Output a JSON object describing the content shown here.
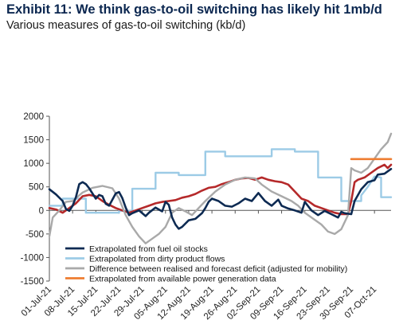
{
  "title": "Exhibit 11: We think gas-to-oil switching has likely hit 1mb/d",
  "subtitle": "Various measures of gas-to-oil switching (kb/d)",
  "chart_data": {
    "type": "line",
    "ylim": [
      -1500,
      2000
    ],
    "yticks": [
      2000,
      1500,
      1000,
      500,
      0,
      -500,
      -1000,
      -1500
    ],
    "xlim": [
      "2021-07-01",
      "2021-10-12"
    ],
    "xticks": [
      {
        "date": "2021-07-01",
        "label": "01-Jul-21"
      },
      {
        "date": "2021-07-08",
        "label": "08-Jul-21"
      },
      {
        "date": "2021-07-15",
        "label": "15-Jul-21"
      },
      {
        "date": "2021-07-22",
        "label": "22-Jul-21"
      },
      {
        "date": "2021-07-29",
        "label": "29-Jul-21"
      },
      {
        "date": "2021-08-05",
        "label": "05-Aug-21"
      },
      {
        "date": "2021-08-12",
        "label": "12-Aug-21"
      },
      {
        "date": "2021-08-19",
        "label": "19-Aug-21"
      },
      {
        "date": "2021-08-26",
        "label": "26-Aug-21"
      },
      {
        "date": "2021-09-02",
        "label": "02-Sep-21"
      },
      {
        "date": "2021-09-09",
        "label": "09-Sep-21"
      },
      {
        "date": "2021-09-16",
        "label": "16-Sep-21"
      },
      {
        "date": "2021-09-23",
        "label": "23-Sep-21"
      },
      {
        "date": "2021-09-30",
        "label": "30-Sep-21"
      },
      {
        "date": "2021-10-07",
        "label": "07-Oct-21"
      }
    ],
    "grid": false,
    "legend_position": "bottom-left",
    "series": [
      {
        "name": "Extrapolated from fuel oil stocks",
        "color": "#0d2a52",
        "points": [
          [
            "2021-07-01",
            450
          ],
          [
            "2021-07-03",
            340
          ],
          [
            "2021-07-05",
            200
          ],
          [
            "2021-07-06",
            30
          ],
          [
            "2021-07-07",
            -10
          ],
          [
            "2021-07-08",
            100
          ],
          [
            "2021-07-09",
            280
          ],
          [
            "2021-07-10",
            560
          ],
          [
            "2021-07-11",
            600
          ],
          [
            "2021-07-12",
            560
          ],
          [
            "2021-07-13",
            470
          ],
          [
            "2021-07-14",
            360
          ],
          [
            "2021-07-15",
            250
          ],
          [
            "2021-07-16",
            330
          ],
          [
            "2021-07-17",
            300
          ],
          [
            "2021-07-18",
            140
          ],
          [
            "2021-07-19",
            100
          ],
          [
            "2021-07-21",
            360
          ],
          [
            "2021-07-22",
            390
          ],
          [
            "2021-07-23",
            260
          ],
          [
            "2021-07-24",
            60
          ],
          [
            "2021-07-25",
            -100
          ],
          [
            "2021-07-26",
            -60
          ],
          [
            "2021-07-28",
            0
          ],
          [
            "2021-07-30",
            -120
          ],
          [
            "2021-07-31",
            -50
          ],
          [
            "2021-08-02",
            60
          ],
          [
            "2021-08-04",
            -20
          ],
          [
            "2021-08-05",
            180
          ],
          [
            "2021-08-06",
            120
          ],
          [
            "2021-08-07",
            -150
          ],
          [
            "2021-08-08",
            -300
          ],
          [
            "2021-08-09",
            -390
          ],
          [
            "2021-08-10",
            -350
          ],
          [
            "2021-08-12",
            -210
          ],
          [
            "2021-08-14",
            -180
          ],
          [
            "2021-08-16",
            -60
          ],
          [
            "2021-08-17",
            50
          ],
          [
            "2021-08-18",
            180
          ],
          [
            "2021-08-19",
            250
          ],
          [
            "2021-08-21",
            200
          ],
          [
            "2021-08-23",
            100
          ],
          [
            "2021-08-25",
            80
          ],
          [
            "2021-08-27",
            150
          ],
          [
            "2021-08-29",
            250
          ],
          [
            "2021-08-31",
            200
          ],
          [
            "2021-09-02",
            370
          ],
          [
            "2021-09-04",
            200
          ],
          [
            "2021-09-06",
            100
          ],
          [
            "2021-09-08",
            230
          ],
          [
            "2021-09-09",
            100
          ],
          [
            "2021-09-11",
            40
          ],
          [
            "2021-09-13",
            0
          ],
          [
            "2021-09-15",
            -50
          ],
          [
            "2021-09-16",
            180
          ],
          [
            "2021-09-18",
            0
          ],
          [
            "2021-09-20",
            -100
          ],
          [
            "2021-09-22",
            -10
          ],
          [
            "2021-09-24",
            -80
          ],
          [
            "2021-09-26",
            -150
          ],
          [
            "2021-09-27",
            -30
          ],
          [
            "2021-09-28",
            -60
          ],
          [
            "2021-09-30",
            -80
          ],
          [
            "2021-10-01",
            200
          ],
          [
            "2021-10-03",
            450
          ],
          [
            "2021-10-05",
            600
          ],
          [
            "2021-10-07",
            640
          ],
          [
            "2021-10-08",
            760
          ],
          [
            "2021-10-10",
            780
          ],
          [
            "2021-10-12",
            880
          ]
        ]
      },
      {
        "name": "Extrapolated from dirty product flows",
        "color": "#9ccbe6",
        "points": [
          [
            "2021-07-01",
            100
          ],
          [
            "2021-07-05",
            100
          ],
          [
            "2021-07-05",
            250
          ],
          [
            "2021-07-12",
            250
          ],
          [
            "2021-07-12",
            -50
          ],
          [
            "2021-07-22",
            -50
          ],
          [
            "2021-07-22",
            -10
          ],
          [
            "2021-07-26",
            -10
          ],
          [
            "2021-07-26",
            460
          ],
          [
            "2021-08-02",
            460
          ],
          [
            "2021-08-02",
            800
          ],
          [
            "2021-08-09",
            800
          ],
          [
            "2021-08-09",
            750
          ],
          [
            "2021-08-17",
            750
          ],
          [
            "2021-08-17",
            1250
          ],
          [
            "2021-08-23",
            1250
          ],
          [
            "2021-08-23",
            1150
          ],
          [
            "2021-09-06",
            1150
          ],
          [
            "2021-09-06",
            1300
          ],
          [
            "2021-09-13",
            1300
          ],
          [
            "2021-09-13",
            1250
          ],
          [
            "2021-09-20",
            1250
          ],
          [
            "2021-09-20",
            700
          ],
          [
            "2021-09-27",
            700
          ],
          [
            "2021-09-27",
            200
          ],
          [
            "2021-10-03",
            200
          ],
          [
            "2021-10-03",
            320
          ],
          [
            "2021-10-05",
            500
          ],
          [
            "2021-10-07",
            720
          ],
          [
            "2021-10-09",
            700
          ],
          [
            "2021-10-09",
            280
          ],
          [
            "2021-10-12",
            280
          ]
        ]
      },
      {
        "name": "Difference between realised and forecast deficit (adjusted for mobility)",
        "color": "#a9a9a9",
        "points": [
          [
            "2021-07-01",
            -550
          ],
          [
            "2021-07-02",
            -150
          ],
          [
            "2021-07-04",
            0
          ],
          [
            "2021-07-06",
            180
          ],
          [
            "2021-07-08",
            200
          ],
          [
            "2021-07-11",
            380
          ],
          [
            "2021-07-14",
            480
          ],
          [
            "2021-07-17",
            520
          ],
          [
            "2021-07-20",
            470
          ],
          [
            "2021-07-22",
            250
          ],
          [
            "2021-07-24",
            -100
          ],
          [
            "2021-07-26",
            -350
          ],
          [
            "2021-07-28",
            -550
          ],
          [
            "2021-07-30",
            -700
          ],
          [
            "2021-08-01",
            -600
          ],
          [
            "2021-08-03",
            -500
          ],
          [
            "2021-08-05",
            -350
          ],
          [
            "2021-08-07",
            -50
          ],
          [
            "2021-08-09",
            50
          ],
          [
            "2021-08-11",
            -20
          ],
          [
            "2021-08-13",
            -100
          ],
          [
            "2021-08-15",
            50
          ],
          [
            "2021-08-17",
            200
          ],
          [
            "2021-08-20",
            400
          ],
          [
            "2021-08-23",
            550
          ],
          [
            "2021-08-26",
            650
          ],
          [
            "2021-08-29",
            700
          ],
          [
            "2021-09-01",
            680
          ],
          [
            "2021-09-03",
            550
          ],
          [
            "2021-09-06",
            400
          ],
          [
            "2021-09-09",
            300
          ],
          [
            "2021-09-12",
            200
          ],
          [
            "2021-09-14",
            100
          ],
          [
            "2021-09-16",
            -50
          ],
          [
            "2021-09-19",
            -200
          ],
          [
            "2021-09-21",
            -300
          ],
          [
            "2021-09-23",
            -450
          ],
          [
            "2021-09-25",
            -500
          ],
          [
            "2021-09-27",
            -400
          ],
          [
            "2021-09-29",
            -100
          ],
          [
            "2021-09-30",
            900
          ],
          [
            "2021-10-01",
            850
          ],
          [
            "2021-10-03",
            800
          ],
          [
            "2021-10-05",
            900
          ],
          [
            "2021-10-07",
            1100
          ],
          [
            "2021-10-09",
            1300
          ],
          [
            "2021-10-11",
            1450
          ],
          [
            "2021-10-12",
            1630
          ]
        ]
      },
      {
        "name": "Extrapolated from available power generation data",
        "color": "#ee7d31",
        "points": [
          [
            "2021-09-30",
            1090
          ],
          [
            "2021-10-12",
            1090
          ]
        ]
      },
      {
        "name": "",
        "color": "#b5292a",
        "points": [
          [
            "2021-07-01",
            50
          ],
          [
            "2021-07-03",
            20
          ],
          [
            "2021-07-05",
            -50
          ],
          [
            "2021-07-07",
            50
          ],
          [
            "2021-07-09",
            150
          ],
          [
            "2021-07-11",
            300
          ],
          [
            "2021-07-13",
            330
          ],
          [
            "2021-07-15",
            300
          ],
          [
            "2021-07-17",
            200
          ],
          [
            "2021-07-19",
            120
          ],
          [
            "2021-07-21",
            50
          ],
          [
            "2021-07-23",
            0
          ],
          [
            "2021-07-25",
            -50
          ],
          [
            "2021-07-27",
            0
          ],
          [
            "2021-07-29",
            50
          ],
          [
            "2021-07-31",
            100
          ],
          [
            "2021-08-02",
            150
          ],
          [
            "2021-08-04",
            180
          ],
          [
            "2021-08-06",
            200
          ],
          [
            "2021-08-08",
            220
          ],
          [
            "2021-08-10",
            270
          ],
          [
            "2021-08-12",
            300
          ],
          [
            "2021-08-14",
            350
          ],
          [
            "2021-08-16",
            420
          ],
          [
            "2021-08-18",
            480
          ],
          [
            "2021-08-20",
            500
          ],
          [
            "2021-08-22",
            560
          ],
          [
            "2021-08-24",
            600
          ],
          [
            "2021-08-26",
            650
          ],
          [
            "2021-08-28",
            680
          ],
          [
            "2021-08-30",
            690
          ],
          [
            "2021-09-01",
            650
          ],
          [
            "2021-09-03",
            700
          ],
          [
            "2021-09-05",
            650
          ],
          [
            "2021-09-07",
            620
          ],
          [
            "2021-09-09",
            600
          ],
          [
            "2021-09-11",
            550
          ],
          [
            "2021-09-13",
            400
          ],
          [
            "2021-09-15",
            250
          ],
          [
            "2021-09-17",
            200
          ],
          [
            "2021-09-19",
            100
          ],
          [
            "2021-09-21",
            50
          ],
          [
            "2021-09-23",
            0
          ],
          [
            "2021-09-25",
            -50
          ],
          [
            "2021-09-27",
            -80
          ],
          [
            "2021-09-29",
            -80
          ],
          [
            "2021-09-30",
            200
          ],
          [
            "2021-10-01",
            600
          ],
          [
            "2021-10-02",
            650
          ],
          [
            "2021-10-04",
            700
          ],
          [
            "2021-10-06",
            800
          ],
          [
            "2021-10-08",
            900
          ],
          [
            "2021-10-10",
            970
          ],
          [
            "2021-10-11",
            900
          ],
          [
            "2021-10-12",
            970
          ]
        ]
      }
    ],
    "legend": [
      {
        "label": "Extrapolated from fuel oil stocks",
        "color": "#0d2a52"
      },
      {
        "label": "Extrapolated from dirty product flows",
        "color": "#9ccbe6"
      },
      {
        "label": "Difference between realised and forecast deficit (adjusted for mobility)",
        "color": "#a9a9a9"
      },
      {
        "label": "Extrapolated from available power generation data",
        "color": "#ee7d31"
      }
    ]
  }
}
